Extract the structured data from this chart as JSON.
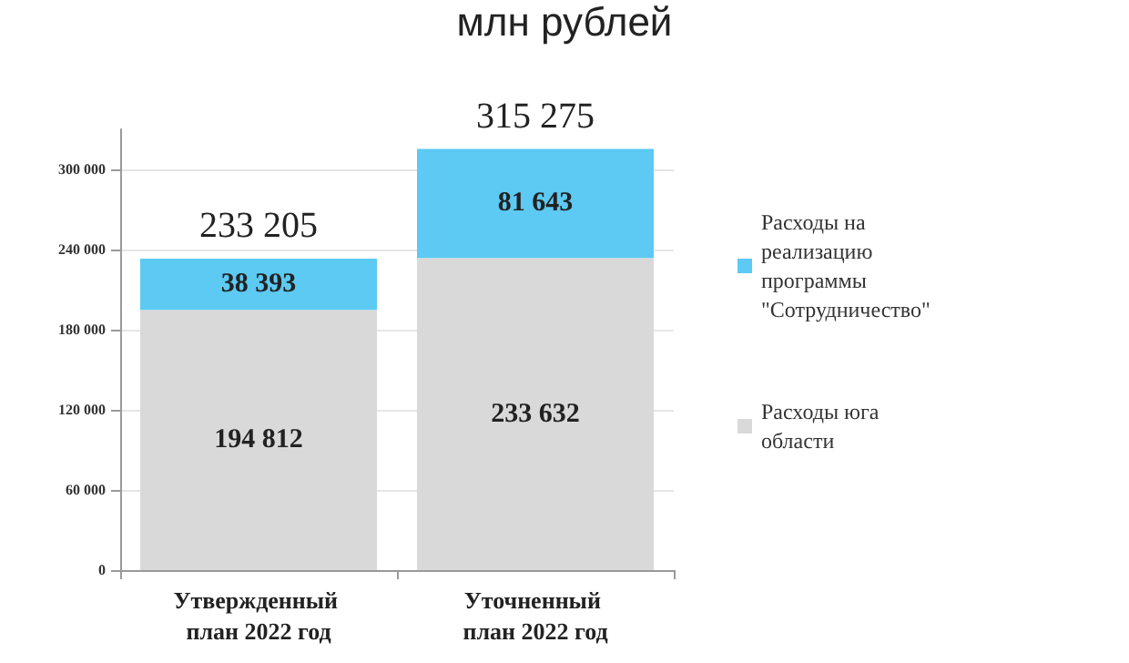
{
  "chart_data": {
    "type": "bar",
    "title": "млн рублей",
    "stacked": true,
    "categories": [
      "Утвержденный план 2022 год",
      "Уточненный план 2022 год"
    ],
    "series": [
      {
        "name": "Расходы юга области",
        "color": "#d9d9d9",
        "values": [
          194812,
          233632
        ],
        "value_labels": [
          "194 812",
          "233 632"
        ]
      },
      {
        "name": "Расходы на реализацию программы \"Сотрудничество\"",
        "color": "#5ccaf3",
        "values": [
          38393,
          81643
        ],
        "value_labels": [
          "38 393",
          "81 643"
        ]
      }
    ],
    "totals": [
      "233 205",
      "315 275"
    ],
    "ylim": [
      0,
      330000
    ],
    "yticks": [
      {
        "value": 0,
        "label": "0"
      },
      {
        "value": 60000,
        "label": "60 000"
      },
      {
        "value": 120000,
        "label": "120 000"
      },
      {
        "value": 180000,
        "label": "180 000"
      },
      {
        "value": 240000,
        "label": "240 000"
      },
      {
        "value": 300000,
        "label": "300 000"
      }
    ],
    "grid": "y",
    "legend": "right"
  }
}
